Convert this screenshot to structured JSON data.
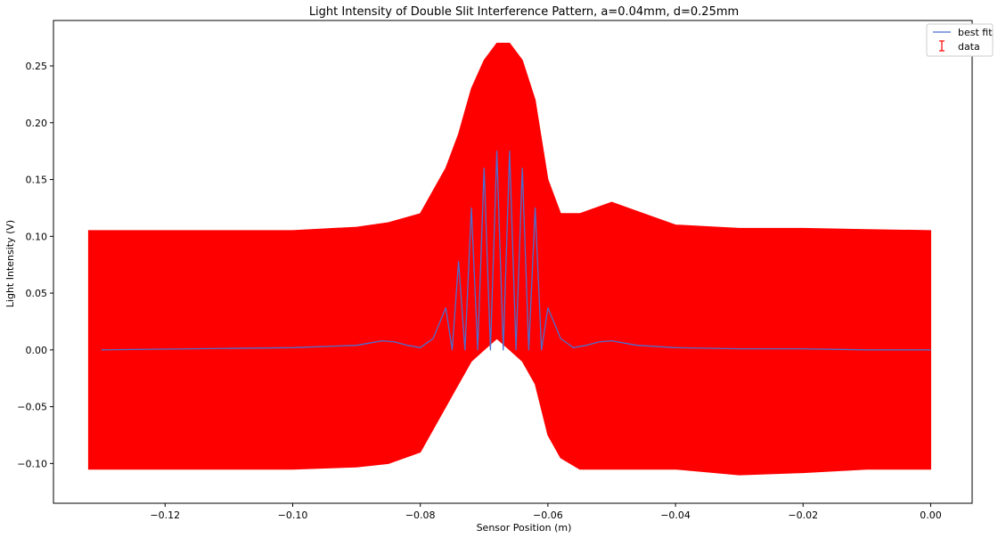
{
  "chart_data": {
    "type": "scatter",
    "title": "Light Intensity of Double Slit Interference Pattern, a=0.04mm, d=0.25mm",
    "xlabel": "Sensor Position (m)",
    "ylabel": "Light Intensity (V)",
    "xlim": [
      -0.1375,
      0.0065
    ],
    "ylim": [
      -0.135,
      0.29
    ],
    "xticks": [
      -0.12,
      -0.1,
      -0.08,
      -0.06,
      -0.04,
      -0.02,
      0.0
    ],
    "xtick_labels": [
      "−0.12",
      "−0.10",
      "−0.08",
      "−0.06",
      "−0.04",
      "−0.02",
      "0.00"
    ],
    "yticks": [
      -0.1,
      -0.05,
      0.0,
      0.05,
      0.1,
      0.15,
      0.2,
      0.25
    ],
    "ytick_labels": [
      "−0.10",
      "−0.05",
      "0.00",
      "0.05",
      "0.10",
      "0.15",
      "0.20",
      "0.25"
    ],
    "grid": false,
    "legend_position": "top-right",
    "colors": {
      "fit": "#4a6fd0",
      "data": "#ff0000"
    },
    "series": [
      {
        "name": "best fit",
        "style": "line",
        "x": [
          -0.13,
          -0.1,
          -0.09,
          -0.088,
          -0.086,
          -0.084,
          -0.082,
          -0.08,
          -0.078,
          -0.076,
          -0.075,
          -0.074,
          -0.073,
          -0.072,
          -0.071,
          -0.07,
          -0.069,
          -0.068,
          -0.067,
          -0.066,
          -0.065,
          -0.064,
          -0.063,
          -0.062,
          -0.061,
          -0.06,
          -0.058,
          -0.056,
          -0.054,
          -0.052,
          -0.05,
          -0.048,
          -0.046,
          -0.04,
          -0.03,
          -0.02,
          -0.01,
          0.0
        ],
        "y": [
          0.0,
          0.002,
          0.004,
          0.006,
          0.008,
          0.007,
          0.004,
          0.002,
          0.01,
          0.037,
          0.0,
          0.078,
          0.0,
          0.125,
          0.0,
          0.16,
          0.0,
          0.175,
          0.0,
          0.175,
          0.0,
          0.16,
          0.0,
          0.125,
          0.0,
          0.037,
          0.01,
          0.002,
          0.004,
          0.007,
          0.008,
          0.006,
          0.004,
          0.002,
          0.001,
          0.001,
          0.0,
          0.0
        ]
      },
      {
        "name": "data",
        "style": "errorbar",
        "x": [
          -0.132,
          -0.12,
          -0.1,
          -0.09,
          -0.085,
          -0.08,
          -0.078,
          -0.076,
          -0.074,
          -0.072,
          -0.07,
          -0.068,
          -0.066,
          -0.064,
          -0.062,
          -0.06,
          -0.058,
          -0.055,
          -0.05,
          -0.045,
          -0.04,
          -0.03,
          -0.02,
          -0.01,
          0.0
        ],
        "y_upper": [
          0.105,
          0.105,
          0.105,
          0.108,
          0.112,
          0.12,
          0.14,
          0.16,
          0.19,
          0.23,
          0.255,
          0.27,
          0.27,
          0.255,
          0.22,
          0.15,
          0.12,
          0.12,
          0.13,
          0.12,
          0.11,
          0.107,
          0.107,
          0.106,
          0.105
        ],
        "y_lower": [
          -0.105,
          -0.105,
          -0.105,
          -0.103,
          -0.1,
          -0.09,
          -0.07,
          -0.05,
          -0.03,
          -0.01,
          0.0,
          0.01,
          0.0,
          -0.01,
          -0.03,
          -0.075,
          -0.095,
          -0.105,
          -0.105,
          -0.105,
          -0.105,
          -0.11,
          -0.108,
          -0.105,
          -0.105
        ]
      }
    ]
  }
}
